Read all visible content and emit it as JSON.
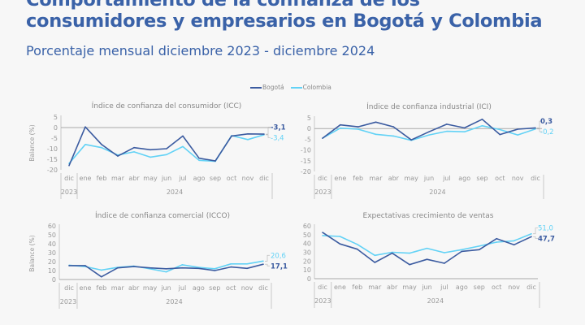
{
  "header": {
    "title_line1": "Comportamiento de la confianza de los",
    "title_line2": "consumidores y empresarios en Bogotá y Colombia",
    "subtitle": "Porcentaje mensual diciembre 2023 - diciembre 2024"
  },
  "legend": [
    {
      "name": "Bogotá",
      "color": "#3b5ba0"
    },
    {
      "name": "Colombia",
      "color": "#62d2f6"
    }
  ],
  "chart_data": [
    {
      "type": "line",
      "title": "Índice de confianza del consumidor (ICC)",
      "ylabel": "Balance (%)",
      "ylim": [
        -20,
        5
      ],
      "yticks": [
        "5",
        "0",
        "-5",
        "-10",
        "-15",
        "-20"
      ],
      "categories": [
        "dic",
        "ene",
        "feb",
        "mar",
        "abr",
        "may",
        "jun",
        "jul",
        "ago",
        "sep",
        "oct",
        "nov",
        "dic"
      ],
      "years": [
        "2023",
        "2024"
      ],
      "grid": false,
      "series": [
        {
          "name": "Bogotá",
          "values": [
            -18,
            0.3,
            -8,
            -13.5,
            -9.5,
            -10.5,
            -10,
            -4,
            -14.5,
            -15.8,
            -4,
            -3,
            -3.1
          ],
          "end_label": "-3,1"
        },
        {
          "name": "Colombia",
          "values": [
            -17,
            -8,
            -9.5,
            -13,
            -11.5,
            -14,
            -12.8,
            -9,
            -15.5,
            -16,
            -3.8,
            -5.7,
            -3.4
          ],
          "end_label": "-3,4"
        }
      ]
    },
    {
      "type": "line",
      "title": "Índice de confianza industrial (ICI)",
      "ylabel": "",
      "ylim": [
        -20,
        5
      ],
      "yticks": [
        "5",
        "0",
        "-5",
        "-10",
        "-15",
        "-20"
      ],
      "categories": [
        "dic",
        "ene",
        "feb",
        "mar",
        "abr",
        "may",
        "jun",
        "jul",
        "ago",
        "sep",
        "oct",
        "nov",
        "dic"
      ],
      "years": [
        "2023",
        "2024"
      ],
      "grid": false,
      "series": [
        {
          "name": "Bogotá",
          "values": [
            -4.5,
            1.7,
            0.8,
            3,
            0.8,
            -5.3,
            -1.5,
            2,
            0.3,
            4.3,
            -2.8,
            -0.3,
            0.3
          ],
          "end_label": "0,3"
        },
        {
          "name": "Colombia",
          "values": [
            -4.5,
            0.2,
            -0.3,
            -2.7,
            -3.5,
            -5.5,
            -3,
            -1.3,
            -1.5,
            1.3,
            -0.5,
            -3,
            -0.2
          ],
          "end_label": "-0,2"
        }
      ]
    },
    {
      "type": "line",
      "title": "Índice de confianza comercial (ICCO)",
      "ylabel": "Balance (%)",
      "ylim": [
        0,
        60
      ],
      "yticks": [
        "60",
        "50",
        "40",
        "30",
        "20",
        "10",
        "0"
      ],
      "categories": [
        "dic",
        "ene",
        "feb",
        "mar",
        "abr",
        "may",
        "jun",
        "jul",
        "ago",
        "sep",
        "oct",
        "nov",
        "dic"
      ],
      "years": [
        "2023",
        "2024"
      ],
      "grid": false,
      "series": [
        {
          "name": "Bogotá",
          "values": [
            15.5,
            15.5,
            3,
            13,
            14.5,
            13,
            12,
            13,
            12.5,
            10,
            14,
            12.5,
            17.1
          ],
          "end_label": "17,1"
        },
        {
          "name": "Colombia",
          "values": [
            16,
            14.5,
            10.5,
            13.5,
            15,
            12,
            8.5,
            16.5,
            13.5,
            12,
            17.5,
            17.5,
            20.6
          ],
          "end_label": "20,6"
        }
      ]
    },
    {
      "type": "line",
      "title": "Expectativas crecimiento de ventas",
      "ylabel": "",
      "ylim": [
        0,
        60
      ],
      "yticks": [
        "60",
        "50",
        "40",
        "30",
        "20",
        "10",
        "0"
      ],
      "categories": [
        "dic",
        "ene",
        "feb",
        "mar",
        "abr",
        "may",
        "jun",
        "jul",
        "ago",
        "sep",
        "oct",
        "nov",
        "dic"
      ],
      "years": [
        "2023",
        "2024"
      ],
      "grid": false,
      "series": [
        {
          "name": "Bogotá",
          "values": [
            52.5,
            39.5,
            33.5,
            18.5,
            29,
            16,
            22,
            17.5,
            31,
            33,
            45.5,
            38.5,
            47.7
          ],
          "end_label": "47,7"
        },
        {
          "name": "Colombia",
          "values": [
            49,
            48,
            39,
            26.5,
            30,
            29,
            34.5,
            29.5,
            33,
            37,
            41.5,
            43,
            51
          ],
          "end_label": "51,0"
        }
      ]
    }
  ]
}
